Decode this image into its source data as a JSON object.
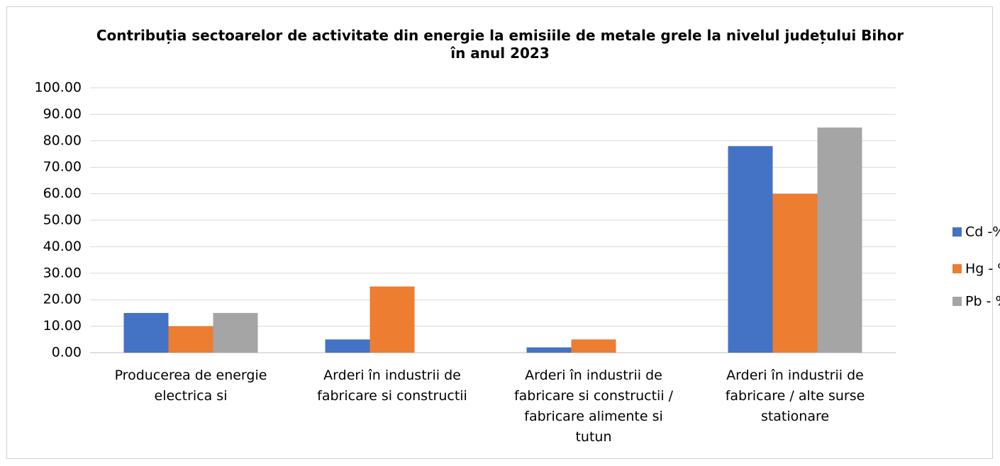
{
  "chart_data": {
    "type": "bar",
    "title": "Contribuția sectoarelor de activitate din energie la  emisiile de metale grele la nivelul județului Bihor în anul 2023",
    "categories": [
      "Producerea de energie electrica si",
      "Arderi în industrii de fabricare si constructii",
      "Arderi în industrii de fabricare si constructii / fabricare alimente si tutun",
      "Arderi în industrii de fabricare / alte surse stationare"
    ],
    "series": [
      {
        "name": "Cd -%",
        "color": "#4472c4",
        "values": [
          15,
          5,
          2,
          78
        ]
      },
      {
        "name": "Hg - %",
        "color": "#ed7d31",
        "values": [
          10,
          25,
          5,
          60
        ]
      },
      {
        "name": "Pb - %",
        "color": "#a5a5a5",
        "values": [
          15,
          0,
          0,
          85
        ]
      }
    ],
    "ylim": [
      0,
      100
    ],
    "yticks": [
      {
        "value": 0,
        "label": "0.00"
      },
      {
        "value": 10,
        "label": "10.00"
      },
      {
        "value": 20,
        "label": "20.00"
      },
      {
        "value": 30,
        "label": "30.00"
      },
      {
        "value": 40,
        "label": "40.00"
      },
      {
        "value": 50,
        "label": "50.00"
      },
      {
        "value": 60,
        "label": "60.00"
      },
      {
        "value": 70,
        "label": "70.00"
      },
      {
        "value": 80,
        "label": "80.00"
      },
      {
        "value": 90,
        "label": "90.00"
      },
      {
        "value": 100,
        "label": "100.00"
      }
    ],
    "grid": true,
    "legend": "right"
  }
}
